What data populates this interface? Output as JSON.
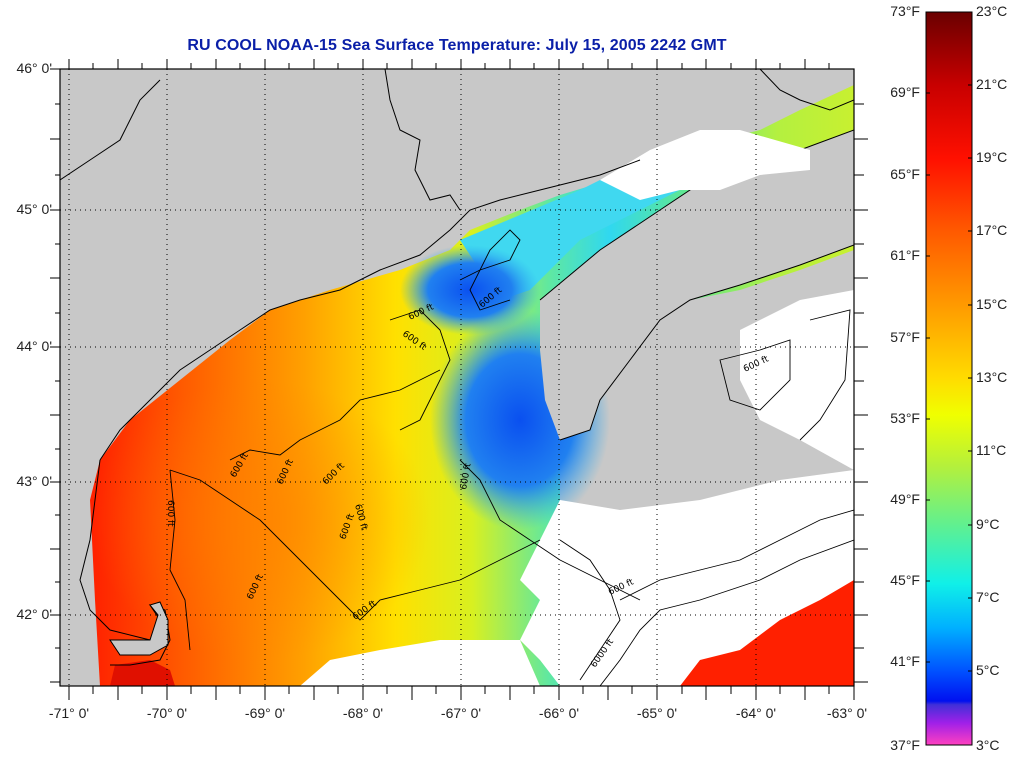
{
  "title": "RU COOL  NOAA-15  Sea Surface Temperature:  July 15, 2005 2242 GMT",
  "axes": {
    "latitude_labels": [
      "46° 0'",
      "45° 0'",
      "44° 0'",
      "43° 0'",
      "42° 0'"
    ],
    "longitude_labels": [
      "-71° 0'",
      "-70° 0'",
      "-69° 0'",
      "-68° 0'",
      "-67° 0'",
      "-66° 0'",
      "-65° 0'",
      "-64° 0'",
      "-63° 0'"
    ]
  },
  "contour_labels": [
    "600 ft",
    "600 ft",
    "600 ft",
    "600 ft",
    "600 ft",
    "600 ft",
    "600 ft",
    "600 ft",
    "600 ft",
    "600 ft",
    "600 ft",
    "600 ft",
    "600 ft",
    "600 ft",
    "6000 ft"
  ],
  "colorbar": {
    "fahrenheit_labels": [
      "73°F",
      "69°F",
      "65°F",
      "61°F",
      "57°F",
      "53°F",
      "49°F",
      "45°F",
      "41°F",
      "37°F"
    ],
    "celsius_labels": [
      "23°C",
      "21°C",
      "19°C",
      "17°C",
      "15°C",
      "13°C",
      "11°C",
      "9°C",
      "7°C",
      "5°C",
      "3°C"
    ],
    "range_c": [
      3,
      23
    ],
    "colors": {
      "c23": "#7a0000",
      "c21": "#ff0a00",
      "c19": "#ff6a00",
      "c17": "#ffc800",
      "c15": "#f0ff00",
      "c13": "#9cf04a",
      "c11": "#20f0d0",
      "c9": "#00b8ff",
      "c7": "#0040ff",
      "c5": "#6a2ae0",
      "c3": "#ff3cc8"
    }
  },
  "map_colors": {
    "land": "#c8c8c8",
    "cloud": "#ffffff"
  }
}
